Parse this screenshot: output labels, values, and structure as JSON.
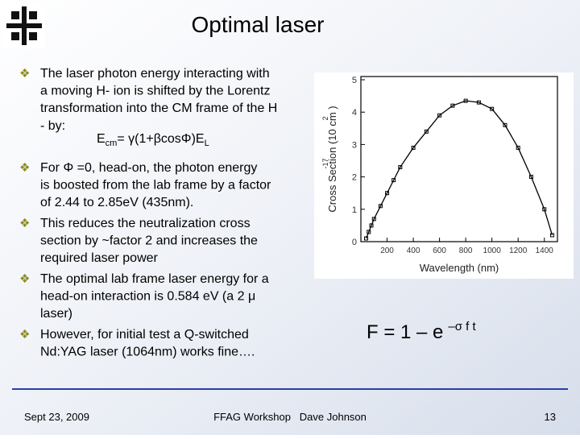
{
  "header": {
    "title": "Optimal laser"
  },
  "bullets": [
    {
      "lines": [
        "The laser photon energy interacting with",
        "a moving H- ion is shifted by the Lorentz",
        "transformation into the CM frame of the H",
        "- by:"
      ]
    },
    {
      "lines": [
        "   For Φ =0, head-on, the photon energy",
        "is boosted from the lab frame by a factor",
        "of 2.44 to 2.85eV (435nm)."
      ]
    },
    {
      "lines": [
        "This reduces the neutralization cross",
        "section by ~factor 2 and increases the",
        "required laser power"
      ]
    },
    {
      "lines": [
        "The optimal lab frame laser energy for a",
        "head-on interaction is 0.584 eV (a 2 μ",
        "laser)"
      ]
    },
    {
      "lines": [
        "However, for initial test a Q-switched",
        "Nd:YAG laser (1064nm) works fine…."
      ]
    }
  ],
  "formula1": {
    "base": "E",
    "sub": "cm",
    "middle": "= γ(1+βcosΦ)E",
    "sub2": "L"
  },
  "formula2": {
    "base": "F = 1 – e",
    "exponent": "–σ f t"
  },
  "chart_data": {
    "type": "line",
    "x_label": "Wavelength (nm)",
    "y_label": "Cross Section (10   cm )",
    "y_label_exponents": [
      "-17",
      "2"
    ],
    "x": [
      40,
      60,
      80,
      100,
      150,
      200,
      250,
      300,
      400,
      500,
      600,
      700,
      800,
      900,
      1000,
      1100,
      1200,
      1300,
      1400,
      1460
    ],
    "values": [
      0.1,
      0.3,
      0.5,
      0.7,
      1.1,
      1.5,
      1.9,
      2.3,
      2.9,
      3.4,
      3.9,
      4.2,
      4.35,
      4.3,
      4.1,
      3.6,
      2.9,
      2.0,
      1.0,
      0.2
    ],
    "color": "#000000",
    "xlim": [
      0,
      1500
    ],
    "xticks": [
      200,
      400,
      600,
      800,
      1000,
      1200,
      1400
    ],
    "ylim": [
      0,
      5.1
    ],
    "yticks": [
      0,
      1,
      2,
      3,
      4,
      5
    ]
  },
  "footer": {
    "date": "Sept 23, 2009",
    "event": "FFAG Workshop   Dave Johnson",
    "page": "13"
  }
}
